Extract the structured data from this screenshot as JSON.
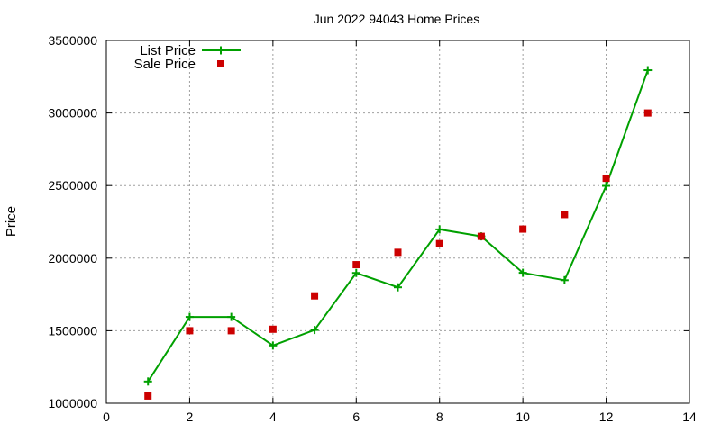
{
  "chart_data": {
    "type": "line",
    "title": "Jun 2022 94043 Home Prices",
    "xlabel": "",
    "ylabel": "Price",
    "xlim": [
      0,
      14
    ],
    "ylim": [
      1000000,
      3500000
    ],
    "x_ticks": [
      0,
      2,
      4,
      6,
      8,
      10,
      12,
      14
    ],
    "y_ticks": [
      1000000,
      1500000,
      2000000,
      2500000,
      3000000,
      3500000
    ],
    "grid": true,
    "legend_position": "top-left",
    "series": [
      {
        "name": "List Price",
        "style": "linespoints",
        "marker": "plus",
        "color": "#00a000",
        "x": [
          1,
          2,
          3,
          4,
          5,
          6,
          7,
          8,
          9,
          10,
          11,
          12,
          13
        ],
        "values": [
          1150000,
          1595000,
          1595000,
          1398000,
          1505000,
          1898000,
          1799000,
          2198000,
          2150000,
          1899000,
          1848000,
          2498000,
          3295000
        ]
      },
      {
        "name": "Sale Price",
        "style": "points",
        "marker": "square",
        "color": "#cc0000",
        "x": [
          1,
          2,
          3,
          4,
          5,
          6,
          7,
          8,
          9,
          10,
          11,
          12,
          13
        ],
        "values": [
          1050000,
          1500000,
          1500000,
          1510000,
          1740000,
          1955000,
          2040000,
          2100000,
          2150000,
          2200000,
          2300000,
          2550000,
          3000000
        ]
      }
    ]
  }
}
